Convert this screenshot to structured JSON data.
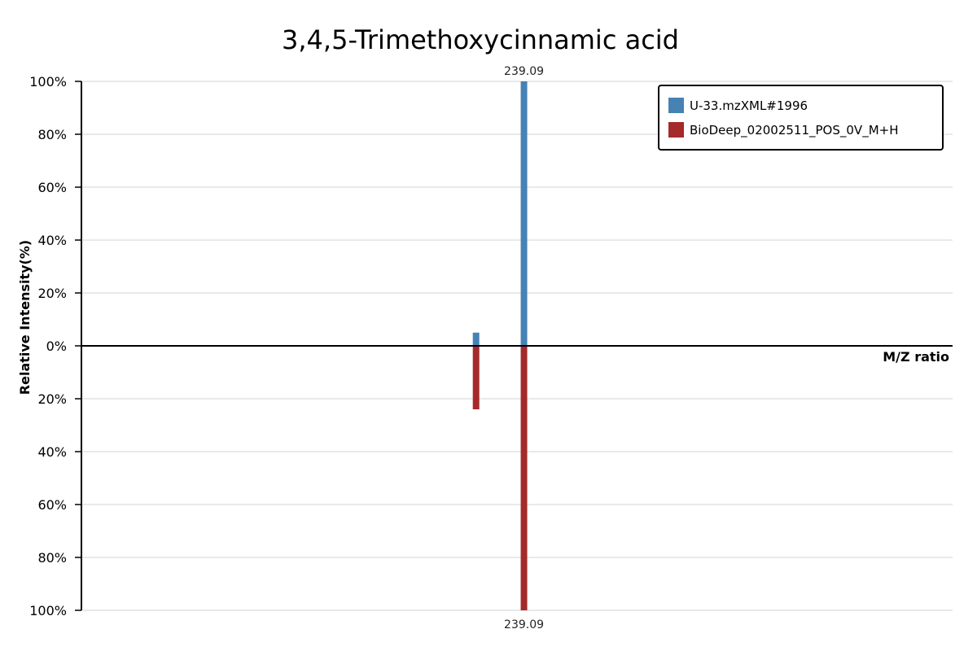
{
  "chart_data": {
    "type": "bar",
    "title": "3,4,5-Trimethoxycinnamic acid",
    "xlabel": "M/Z ratio",
    "ylabel": "Relative Intensity(%)",
    "y_tick_labels_top": [
      "100%",
      "80%",
      "60%",
      "40%",
      "20%",
      "0%"
    ],
    "y_tick_labels_bottom": [
      "20%",
      "40%",
      "60%",
      "80%",
      "100%"
    ],
    "ylim": [
      -100,
      100
    ],
    "xlim": [
      0,
      1
    ],
    "grid": true,
    "legend_position": "top-right",
    "series": [
      {
        "name": "U-33.mzXML#1996",
        "color": "#4682b4",
        "direction": "up",
        "peaks": [
          {
            "x": 0.453,
            "intensity": 5,
            "label": ""
          },
          {
            "x": 0.508,
            "intensity": 100,
            "label": "239.09"
          }
        ]
      },
      {
        "name": "BioDeep_02002511_POS_0V_M+H",
        "color": "#a52a2a",
        "direction": "down",
        "peaks": [
          {
            "x": 0.453,
            "intensity": 24,
            "label": ""
          },
          {
            "x": 0.508,
            "intensity": 100,
            "label": "239.09"
          }
        ]
      }
    ]
  }
}
